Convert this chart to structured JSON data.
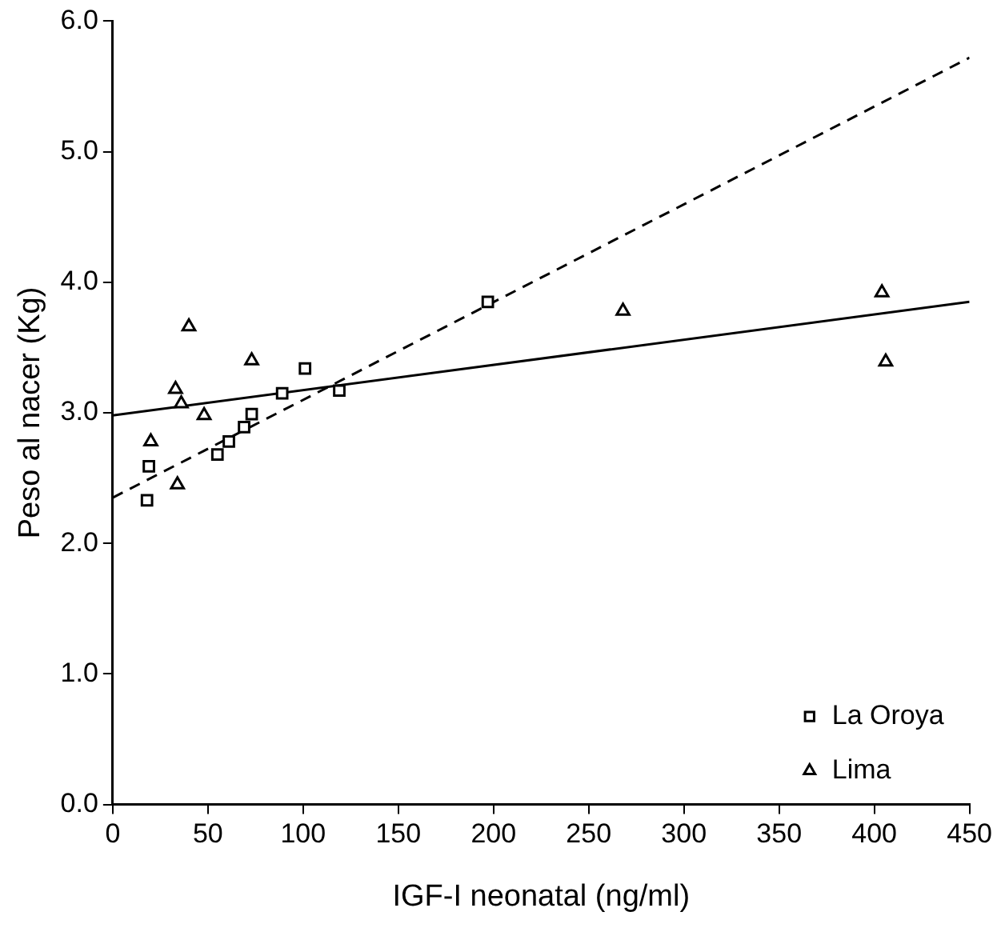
{
  "chart_data": {
    "type": "scatter",
    "xlabel": "IGF-I neonatal (ng/ml)",
    "ylabel": "Peso al nacer (Kg)",
    "xlim": [
      0,
      450
    ],
    "ylim": [
      0,
      6
    ],
    "xticks": [
      0,
      50,
      100,
      150,
      200,
      250,
      300,
      350,
      400,
      450
    ],
    "yticks": [
      {
        "value": 0,
        "label": "0.0"
      },
      {
        "value": 1,
        "label": "1.0"
      },
      {
        "value": 2,
        "label": "2.0"
      },
      {
        "value": 3,
        "label": "3.0"
      },
      {
        "value": 4,
        "label": "4.0"
      },
      {
        "value": 5,
        "label": "5.0"
      },
      {
        "value": 6,
        "label": "6.0"
      }
    ],
    "grid": false,
    "legend": "bottom right",
    "series": [
      {
        "name": "La Oroya",
        "color": "#000000",
        "marker": "square",
        "x": [
          19,
          18,
          55,
          61,
          69,
          73,
          89,
          101,
          119,
          197
        ],
        "values": [
          2.59,
          2.33,
          2.68,
          2.78,
          2.89,
          2.99,
          3.15,
          3.34,
          3.17,
          3.85
        ]
      },
      {
        "name": "Lima",
        "color": "#000000",
        "marker": "triangle",
        "x": [
          40,
          73,
          33,
          36,
          48,
          20,
          34,
          268,
          404,
          406
        ],
        "values": [
          3.66,
          3.4,
          3.18,
          3.07,
          2.98,
          2.78,
          2.45,
          3.78,
          3.92,
          3.39
        ]
      },
      {
        "type": "line",
        "color": "#000000",
        "line_style": "solid",
        "marker": "none",
        "x": [
          0,
          450
        ],
        "values": [
          2.98,
          3.85
        ]
      },
      {
        "type": "line",
        "color": "#000000",
        "line_style": "dashed",
        "marker": "none",
        "x": [
          0,
          450
        ],
        "values": [
          2.35,
          5.72
        ]
      }
    ]
  }
}
